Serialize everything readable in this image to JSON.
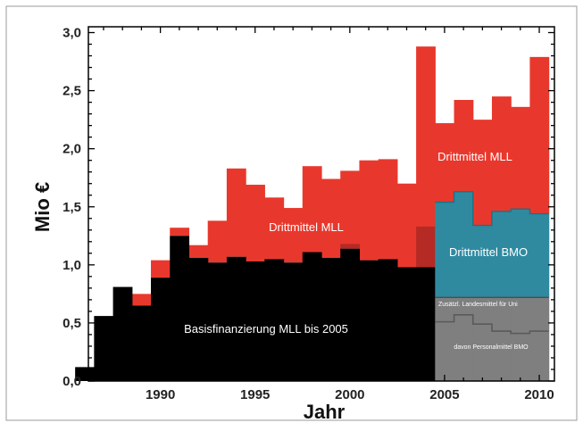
{
  "chart_data": {
    "type": "bar",
    "stacked": true,
    "xlabel": "Jahr",
    "ylabel": "Mio €",
    "xlim": [
      1986.2,
      2010.8
    ],
    "ylim": [
      0.0,
      3.05
    ],
    "grid": false,
    "x_ticks": [
      "1990",
      "1995",
      "2000",
      "2005",
      "2010"
    ],
    "y_ticks": [
      "0,0",
      "0,5",
      "1,0",
      "1,5",
      "2,0",
      "2,5",
      "3,0"
    ],
    "colors": {
      "basis": "#000000",
      "drittmittel_mll": "#e8382d",
      "drittmittel_mll_dark": "#b52a24",
      "drittmittel_bmo": "#2f8aa0",
      "landesmittel": "#7f7f7f",
      "personal_line": "#5a5a5a"
    },
    "basis_mll": {
      "years": [
        1986,
        1987,
        1988,
        1989,
        1990,
        1991,
        1992,
        1993,
        1994,
        1995,
        1996,
        1997,
        1998,
        1999,
        2000,
        2001,
        2002,
        2003,
        2004
      ],
      "values": [
        0.12,
        0.56,
        0.81,
        0.65,
        0.89,
        1.25,
        1.06,
        1.02,
        1.07,
        1.03,
        1.05,
        1.02,
        1.11,
        1.06,
        1.14,
        1.04,
        1.05,
        0.98,
        0.98
      ]
    },
    "total_mll": {
      "years": [
        1986,
        1987,
        1988,
        1989,
        1990,
        1991,
        1992,
        1993,
        1994,
        1995,
        1996,
        1997,
        1998,
        1999,
        2000,
        2001,
        2002,
        2003,
        2004,
        2005,
        2006,
        2007,
        2008,
        2009,
        2010
      ],
      "values": [
        0.12,
        0.56,
        0.81,
        0.75,
        1.04,
        1.32,
        1.17,
        1.38,
        1.83,
        1.69,
        1.58,
        1.49,
        1.85,
        1.74,
        1.81,
        1.9,
        1.91,
        1.7,
        2.88,
        2.22,
        2.42,
        2.25,
        2.45,
        2.36,
        2.79
      ]
    },
    "darker_segments": [
      {
        "year": 2000,
        "from": 1.14,
        "to": 1.18
      },
      {
        "year": 2004,
        "from": 0.98,
        "to": 1.33
      }
    ],
    "bmo_total": {
      "years": [
        2005,
        2006,
        2007,
        2008,
        2009,
        2010
      ],
      "values": [
        1.54,
        1.63,
        1.34,
        1.46,
        1.48,
        1.44
      ]
    },
    "landesmittel_total": {
      "years": [
        2005,
        2006,
        2007,
        2008,
        2009,
        2010
      ],
      "values": [
        0.72,
        0.72,
        0.72,
        0.72,
        0.72,
        0.72
      ]
    },
    "personalmittel_bmo": {
      "years": [
        2005,
        2006,
        2007,
        2008,
        2009,
        2010
      ],
      "values": [
        0.51,
        0.57,
        0.49,
        0.43,
        0.41,
        0.43
      ]
    },
    "annotations": {
      "basis": "Basisfinanzierung MLL bis 2005",
      "drittmittel_mll_mid": "Drittmittel MLL",
      "drittmittel_mll_right": "Drittmittel MLL",
      "drittmittel_bmo": "Drittmittel BMO",
      "landesmittel": "Zusätzl. Landesmittel für Uni",
      "personalmittel": "davon Personalmittel BMO"
    }
  }
}
